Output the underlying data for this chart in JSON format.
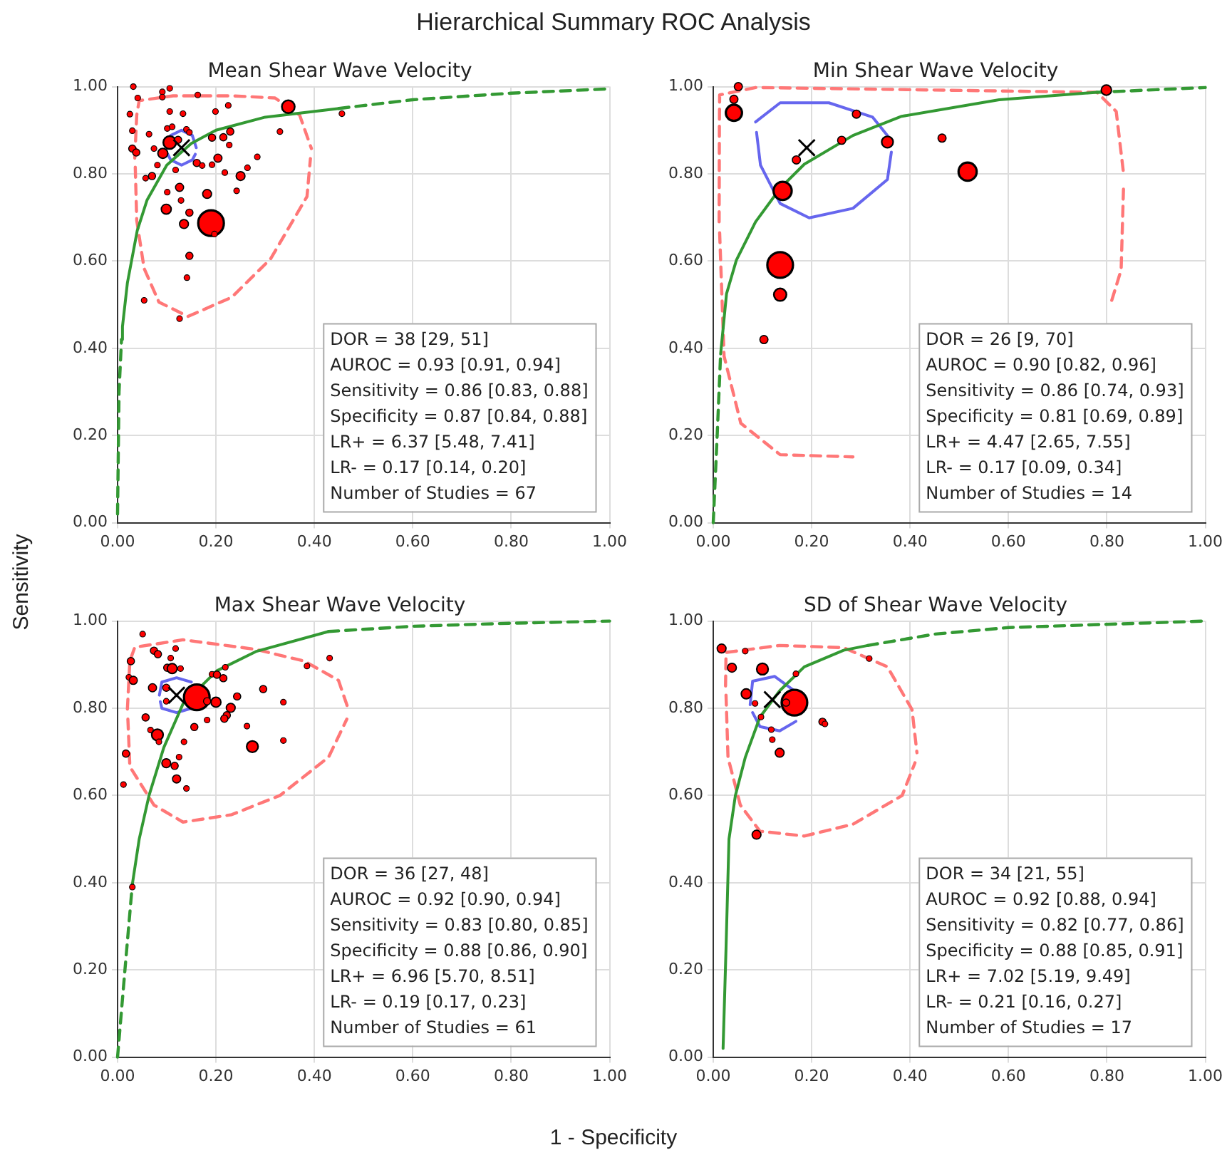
{
  "chart_data": [
    {
      "type": "scatter",
      "title": "Hierarchical Summary ROC Analysis",
      "subtitle": "Mean Shear Wave Velocity",
      "xlabel": "1 - Specificity",
      "ylabel": "Sensitivity",
      "xlim": [
        0,
        1
      ],
      "ylim": [
        0,
        1
      ],
      "xticks": [
        {
          "value": 0,
          "label": "0.00"
        },
        {
          "value": 0.2,
          "label": "0.20"
        },
        {
          "value": 0.4,
          "label": "0.40"
        },
        {
          "value": 0.6,
          "label": "0.60"
        },
        {
          "value": 0.8,
          "label": "0.80"
        },
        {
          "value": 1,
          "label": "1.00"
        }
      ],
      "yticks": [
        {
          "value": 0,
          "label": "0.00"
        },
        {
          "value": 0.2,
          "label": "0.20"
        },
        {
          "value": 0.4,
          "label": "0.40"
        },
        {
          "value": 0.6,
          "label": "0.60"
        },
        {
          "value": 0.8,
          "label": "0.80"
        },
        {
          "value": 1,
          "label": "1.00"
        }
      ],
      "grid": true,
      "annotations": [
        "DOR = 38 [29, 51]",
        "AUROC = 0.93 [0.91, 0.94]",
        "Sensitivity = 0.86 [0.83, 0.88]",
        "Specificity = 0.87 [0.84, 0.88]",
        "LR+ = 6.37 [5.48, 7.41]",
        "LR- = 0.17 [0.14, 0.20]",
        "Number of Studies = 67"
      ],
      "series": [
        {
          "type": "line",
          "color": "#ff7777",
          "line_style": "dashed",
          "marker": "none",
          "x": [
            0.035,
            0.039,
            0.044,
            0.113,
            0.232,
            0.32,
            0.37,
            0.394
          ],
          "values": [
            0.836,
            0.935,
            0.968,
            0.979,
            0.979,
            0.974,
            0.935,
            0.858
          ]
        },
        {
          "type": "line",
          "color": "#ff7777",
          "line_style": "dashed",
          "marker": "none",
          "x": [
            0.036,
            0.039,
            0.054,
            0.084,
            0.143,
            0.232,
            0.311,
            0.385,
            0.392
          ],
          "values": [
            0.815,
            0.693,
            0.583,
            0.506,
            0.473,
            0.517,
            0.605,
            0.748,
            0.835
          ]
        },
        {
          "type": "line",
          "color": "#6666ee",
          "line_style": "solid",
          "marker": "none",
          "x": [
            0.1,
            0.108,
            0.13,
            0.152,
            0.16
          ],
          "values": [
            0.86,
            0.888,
            0.9,
            0.888,
            0.86
          ]
        },
        {
          "type": "line",
          "color": "#6666ee",
          "line_style": "solid",
          "marker": "none",
          "x": [
            0.102,
            0.108,
            0.13,
            0.152,
            0.158
          ],
          "values": [
            0.845,
            0.832,
            0.82,
            0.832,
            0.845
          ]
        },
        {
          "type": "line",
          "color": "#339933",
          "line_style": "solid",
          "marker": "none",
          "x": [
            0.008,
            0.01,
            0.02,
            0.04,
            0.06,
            0.1,
            0.15,
            0.2,
            0.3,
            0.45
          ],
          "values": [
            0.42,
            0.45,
            0.55,
            0.67,
            0.74,
            0.82,
            0.87,
            0.9,
            0.93,
            0.95
          ]
        },
        {
          "type": "line",
          "color": "#339933",
          "line_style": "dashed",
          "marker": "none",
          "x": [
            0,
            0.003,
            0.008
          ],
          "values": [
            0.02,
            0.3,
            0.42
          ]
        },
        {
          "type": "line",
          "color": "#339933",
          "line_style": "dashed",
          "marker": "none",
          "x": [
            0.45,
            0.6,
            0.8,
            1
          ],
          "values": [
            0.95,
            0.97,
            0.985,
            0.995
          ]
        },
        {
          "type": "bubble",
          "color": "#ff0000",
          "marker": "circle",
          "x": [
            0.032,
            0.041,
            0.091,
            0.091,
            0.106,
            0.163,
            0.025,
            0.106,
            0.133,
            0.199,
            0.225,
            0.347,
            0.456,
            0.03,
            0.064,
            0.101,
            0.111,
            0.14,
            0.146,
            0.106,
            0.123,
            0.192,
            0.215,
            0.229,
            0.227,
            0.33,
            0.03,
            0.038,
            0.074,
            0.092,
            0.204,
            0.161,
            0.172,
            0.192,
            0.284,
            0.081,
            0.264,
            0.218,
            0.25,
            0.118,
            0.057,
            0.07,
            0.242,
            0.101,
            0.126,
            0.182,
            0.129,
            0.099,
            0.146,
            0.135,
            0.19,
            0.197,
            0.146,
            0.141,
            0.054,
            0.126
          ],
          "values": [
            1.0,
            0.974,
            0.988,
            0.976,
            0.996,
            0.981,
            0.937,
            0.943,
            0.938,
            0.943,
            0.957,
            0.954,
            0.938,
            0.899,
            0.891,
            0.904,
            0.908,
            0.902,
            0.895,
            0.872,
            0.878,
            0.883,
            0.884,
            0.897,
            0.866,
            0.897,
            0.858,
            0.849,
            0.858,
            0.847,
            0.836,
            0.825,
            0.819,
            0.821,
            0.839,
            0.82,
            0.814,
            0.803,
            0.795,
            0.809,
            0.79,
            0.795,
            0.761,
            0.758,
            0.769,
            0.754,
            0.739,
            0.719,
            0.711,
            0.685,
            0.687,
            0.662,
            0.612,
            0.562,
            0.51,
            0.468
          ],
          "sizes": [
            0.05,
            0.05,
            0.05,
            0.05,
            0.05,
            0.05,
            0.05,
            0.05,
            0.05,
            0.05,
            0.05,
            0.25,
            0.05,
            0.05,
            0.05,
            0.05,
            0.05,
            0.05,
            0.05,
            0.25,
            0.08,
            0.08,
            0.08,
            0.08,
            0.05,
            0.05,
            0.08,
            0.08,
            0.05,
            0.15,
            0.1,
            0.08,
            0.05,
            0.05,
            0.05,
            0.05,
            0.05,
            0.05,
            0.12,
            0.05,
            0.05,
            0.08,
            0.05,
            0.05,
            0.1,
            0.12,
            0.05,
            0.15,
            0.08,
            0.12,
            1,
            0.05,
            0.08,
            0.05,
            0.05,
            0.05
          ]
        },
        {
          "type": "scatter",
          "color": "#000000",
          "marker": "cross",
          "x": [
            0.13
          ],
          "values": [
            0.86
          ]
        }
      ]
    },
    {
      "type": "scatter",
      "subtitle": "Min Shear Wave Velocity",
      "xlim": [
        0,
        1
      ],
      "ylim": [
        0,
        1
      ],
      "xticks": [
        {
          "value": 0,
          "label": "0.00"
        },
        {
          "value": 0.2,
          "label": "0.20"
        },
        {
          "value": 0.4,
          "label": "0.40"
        },
        {
          "value": 0.6,
          "label": "0.60"
        },
        {
          "value": 0.8,
          "label": "0.80"
        },
        {
          "value": 1,
          "label": "1.00"
        }
      ],
      "yticks": [
        {
          "value": 0,
          "label": "0.00"
        },
        {
          "value": 0.2,
          "label": "0.20"
        },
        {
          "value": 0.4,
          "label": "0.40"
        },
        {
          "value": 0.6,
          "label": "0.60"
        },
        {
          "value": 0.8,
          "label": "0.80"
        },
        {
          "value": 1,
          "label": "1.00"
        }
      ],
      "grid": true,
      "annotations": [
        "DOR = 26 [9, 70]",
        "AUROC = 0.90 [0.82, 0.96]",
        "Sensitivity = 0.86 [0.74, 0.93]",
        "Specificity = 0.81 [0.69, 0.89]",
        "LR+ = 4.47 [2.65, 7.55]",
        "LR- = 0.17 [0.09, 0.34]",
        "Number of Studies = 14"
      ],
      "series": [
        {
          "type": "line",
          "color": "#ff7777",
          "line_style": "dashed",
          "marker": "none",
          "x": [
            0.012,
            0.0125,
            0.013,
            0.086,
            0.78,
            0.819,
            0.834
          ],
          "values": [
            0.69,
            0.91,
            0.981,
            0.998,
            0.987,
            0.943,
            0.8
          ]
        },
        {
          "type": "line",
          "color": "#ff7777",
          "line_style": "dashed",
          "marker": "none",
          "x": [
            0.013,
            0.022,
            0.056,
            0.136,
            0.284,
            0.482,
            0.68,
            0.779,
            0.81,
            0.829,
            0.834
          ],
          "values": [
            0.665,
            0.382,
            0.228,
            0.156,
            0.151,
            null,
            null,
            null,
            0.51,
            0.58,
            0.775
          ]
        },
        {
          "type": "line",
          "color": "#6666ee",
          "line_style": "solid",
          "marker": "none",
          "x": [
            0.086,
            0.136,
            0.235,
            0.324,
            0.363
          ],
          "values": [
            0.919,
            0.963,
            0.963,
            0.93,
            0.875
          ]
        },
        {
          "type": "line",
          "color": "#6666ee",
          "line_style": "solid",
          "marker": "none",
          "x": [
            0.088,
            0.096,
            0.136,
            0.195,
            0.284,
            0.354,
            0.362
          ],
          "values": [
            0.895,
            0.82,
            0.732,
            0.699,
            0.721,
            0.787,
            0.85
          ]
        },
        {
          "type": "line",
          "color": "#339933",
          "line_style": "solid",
          "marker": "none",
          "x": [
            0.015,
            0.027,
            0.047,
            0.086,
            0.136,
            0.185,
            0.284,
            0.383,
            0.581,
            0.78
          ],
          "values": [
            0.387,
            0.525,
            0.602,
            0.69,
            0.767,
            0.822,
            0.888,
            0.932,
            0.97,
            0.987
          ]
        },
        {
          "type": "line",
          "color": "#339933",
          "line_style": "dashed",
          "marker": "none",
          "x": [
            0,
            0.008,
            0.015
          ],
          "values": [
            0.0,
            0.2,
            0.387
          ]
        },
        {
          "type": "line",
          "color": "#339933",
          "line_style": "dashed",
          "marker": "none",
          "x": [
            0.78,
            0.9,
            1
          ],
          "values": [
            0.987,
            0.993,
            0.998
          ]
        },
        {
          "type": "bubble",
          "color": "#ff0000",
          "marker": "circle",
          "x": [
            0.042,
            0.042,
            0.291,
            0.261,
            0.354,
            0.465,
            0.169,
            0.517,
            0.141,
            0.136,
            0.136,
            0.103,
            0.799,
            0.051
          ],
          "values": [
            0.971,
            0.94,
            0.937,
            0.877,
            0.873,
            0.882,
            0.832,
            0.805,
            0.761,
            0.591,
            0.523,
            0.42,
            0.992,
            1.0
          ],
          "sizes": [
            0.1,
            0.4,
            0.1,
            0.1,
            0.2,
            0.1,
            0.1,
            0.5,
            0.5,
            1,
            0.24,
            0.1,
            0.16,
            0.1
          ]
        },
        {
          "type": "scatter",
          "color": "#000000",
          "marker": "cross",
          "x": [
            0.19
          ],
          "values": [
            0.86
          ]
        }
      ]
    },
    {
      "type": "scatter",
      "subtitle": "Max Shear Wave Velocity",
      "xlim": [
        0,
        1
      ],
      "ylim": [
        0,
        1
      ],
      "xticks": [
        {
          "value": 0,
          "label": "0.00"
        },
        {
          "value": 0.2,
          "label": "0.20"
        },
        {
          "value": 0.4,
          "label": "0.40"
        },
        {
          "value": 0.6,
          "label": "0.60"
        },
        {
          "value": 0.8,
          "label": "0.80"
        },
        {
          "value": 1,
          "label": "1.00"
        }
      ],
      "yticks": [
        {
          "value": 0,
          "label": "0.00"
        },
        {
          "value": 0.2,
          "label": "0.20"
        },
        {
          "value": 0.4,
          "label": "0.40"
        },
        {
          "value": 0.6,
          "label": "0.60"
        },
        {
          "value": 0.8,
          "label": "0.80"
        },
        {
          "value": 1,
          "label": "1.00"
        }
      ],
      "grid": true,
      "annotations": [
        "DOR = 36 [27, 48]",
        "AUROC = 0.92 [0.90, 0.94]",
        "Sensitivity = 0.83 [0.80, 0.85]",
        "Specificity = 0.88 [0.86, 0.90]",
        "LR+ = 6.96 [5.70, 8.51]",
        "LR- = 0.19 [0.17, 0.23]",
        "Number of Studies = 61"
      ],
      "series": [
        {
          "type": "line",
          "color": "#ff7777",
          "line_style": "dashed",
          "marker": "none",
          "x": [
            0.02,
            0.025,
            0.035,
            0.133,
            0.281,
            0.38,
            0.449,
            0.469
          ],
          "values": [
            0.798,
            0.908,
            0.94,
            0.957,
            0.935,
            0.908,
            0.864,
            0.798
          ]
        },
        {
          "type": "line",
          "color": "#ff7777",
          "line_style": "dashed",
          "marker": "none",
          "x": [
            0.021,
            0.025,
            0.074,
            0.133,
            0.232,
            0.33,
            0.429,
            0.466
          ],
          "values": [
            0.775,
            0.666,
            0.578,
            0.539,
            0.556,
            0.6,
            0.688,
            0.775
          ]
        },
        {
          "type": "line",
          "color": "#6666ee",
          "line_style": "solid",
          "marker": "none",
          "x": [
            0.085,
            0.09,
            0.12,
            0.15
          ],
          "values": [
            0.83,
            0.86,
            0.87,
            0.86
          ]
        },
        {
          "type": "line",
          "color": "#6666ee",
          "line_style": "solid",
          "marker": "none",
          "x": [
            0.087,
            0.09,
            0.12,
            0.15
          ],
          "values": [
            0.815,
            0.8,
            0.79,
            0.8
          ]
        },
        {
          "type": "line",
          "color": "#339933",
          "line_style": "solid",
          "marker": "none",
          "x": [
            0.03,
            0.044,
            0.064,
            0.094,
            0.133,
            0.202,
            0.281,
            0.429
          ],
          "values": [
            0.396,
            0.5,
            0.6,
            0.71,
            0.81,
            0.886,
            0.93,
            0.976
          ]
        },
        {
          "type": "line",
          "color": "#339933",
          "line_style": "dashed",
          "marker": "none",
          "x": [
            0,
            0.015,
            0.03
          ],
          "values": [
            0.0,
            0.2,
            0.396
          ]
        },
        {
          "type": "line",
          "color": "#339933",
          "line_style": "dashed",
          "marker": "none",
          "x": [
            0.429,
            0.6,
            0.8,
            1
          ],
          "values": [
            0.976,
            0.988,
            0.995,
            1.0
          ]
        },
        {
          "type": "bubble",
          "color": "#ff0000",
          "marker": "circle",
          "x": [
            0.051,
            0.074,
            0.082,
            0.118,
            0.027,
            0.108,
            0.101,
            0.111,
            0.128,
            0.219,
            0.192,
            0.202,
            0.215,
            0.023,
            0.032,
            0.071,
            0.099,
            0.296,
            0.385,
            0.431,
            0.161,
            0.182,
            0.2,
            0.243,
            0.337,
            0.099,
            0.23,
            0.222,
            0.217,
            0.057,
            0.182,
            0.156,
            0.263,
            0.067,
            0.081,
            0.084,
            0.135,
            0.274,
            0.337,
            0.017,
            0.099,
            0.116,
            0.125,
            0.12,
            0.14,
            0.012,
            0.03
          ],
          "values": [
            0.97,
            0.932,
            0.924,
            0.937,
            0.908,
            0.915,
            0.893,
            0.891,
            0.891,
            0.894,
            0.878,
            0.877,
            0.869,
            0.871,
            0.864,
            0.847,
            0.847,
            0.844,
            0.897,
            0.915,
            0.825,
            0.816,
            0.814,
            0.827,
            0.814,
            0.816,
            0.801,
            0.784,
            0.776,
            0.779,
            0.773,
            0.757,
            0.759,
            0.75,
            0.739,
            0.723,
            0.723,
            0.712,
            0.726,
            0.696,
            0.674,
            0.668,
            0.688,
            0.638,
            0.616,
            0.625,
            0.39
          ],
          "sizes": [
            0.05,
            0.08,
            0.08,
            0.05,
            0.08,
            0.05,
            0.08,
            0.15,
            0.05,
            0.05,
            0.05,
            0.08,
            0.08,
            0.05,
            0.1,
            0.1,
            0.08,
            0.08,
            0.05,
            0.05,
            1,
            0.08,
            0.15,
            0.08,
            0.05,
            0.05,
            0.12,
            0.08,
            0.08,
            0.08,
            0.05,
            0.08,
            0.05,
            0.05,
            0.2,
            0.05,
            0.05,
            0.2,
            0.05,
            0.08,
            0.12,
            0.08,
            0.05,
            0.1,
            0.05,
            0.05,
            0.05
          ]
        },
        {
          "type": "scatter",
          "color": "#000000",
          "marker": "cross",
          "x": [
            0.12
          ],
          "values": [
            0.83
          ]
        }
      ]
    },
    {
      "type": "scatter",
      "subtitle": "SD of Shear Wave Velocity",
      "xlim": [
        0,
        1
      ],
      "ylim": [
        0,
        1
      ],
      "xticks": [
        {
          "value": 0,
          "label": "0.00"
        },
        {
          "value": 0.2,
          "label": "0.20"
        },
        {
          "value": 0.4,
          "label": "0.40"
        },
        {
          "value": 0.6,
          "label": "0.60"
        },
        {
          "value": 0.8,
          "label": "0.80"
        },
        {
          "value": 1,
          "label": "1.00"
        }
      ],
      "yticks": [
        {
          "value": 0,
          "label": "0.00"
        },
        {
          "value": 0.2,
          "label": "0.20"
        },
        {
          "value": 0.4,
          "label": "0.40"
        },
        {
          "value": 0.6,
          "label": "0.60"
        },
        {
          "value": 0.8,
          "label": "0.80"
        },
        {
          "value": 1,
          "label": "1.00"
        }
      ],
      "grid": true,
      "annotations": [
        "DOR = 34 [21, 55]",
        "AUROC = 0.92 [0.88, 0.94]",
        "Sensitivity = 0.82 [0.77, 0.86]",
        "Specificity = 0.88 [0.85, 0.91]",
        "LR+ = 7.02 [5.19, 9.49]",
        "LR- = 0.21 [0.16, 0.27]",
        "Number of Studies = 17"
      ],
      "series": [
        {
          "type": "line",
          "color": "#ff7777",
          "line_style": "dashed",
          "marker": "none",
          "x": [
            0.025,
            0.026,
            0.135,
            0.265,
            0.354,
            0.404,
            0.414
          ],
          "values": [
            0.851,
            0.928,
            0.944,
            0.939,
            0.895,
            0.797,
            0.698
          ]
        },
        {
          "type": "line",
          "color": "#ff7777",
          "line_style": "dashed",
          "marker": "none",
          "x": [
            0.026,
            0.03,
            0.055,
            0.095,
            0.185,
            0.284,
            0.384,
            0.41
          ],
          "values": [
            0.83,
            0.687,
            0.578,
            0.518,
            0.507,
            0.534,
            0.6,
            0.675
          ]
        },
        {
          "type": "line",
          "color": "#6666ee",
          "line_style": "solid",
          "marker": "none",
          "x": [
            0.075,
            0.08,
            0.125,
            0.165,
            0.17
          ],
          "values": [
            0.808,
            0.862,
            0.873,
            0.84,
            0.786
          ]
        },
        {
          "type": "line",
          "color": "#6666ee",
          "line_style": "solid",
          "marker": "none",
          "x": [
            0.08,
            0.095,
            0.135,
            0.168
          ],
          "values": [
            0.79,
            0.758,
            0.748,
            0.77
          ]
        },
        {
          "type": "line",
          "color": "#339933",
          "line_style": "solid",
          "marker": "none",
          "x": [
            0.02,
            0.026,
            0.032,
            0.045,
            0.065,
            0.095,
            0.135,
            0.185,
            0.265,
            0.314
          ],
          "values": [
            0.02,
            0.25,
            0.5,
            0.6,
            0.687,
            0.78,
            0.84,
            0.895,
            0.933,
            0.944
          ]
        },
        {
          "type": "line",
          "color": "#339933",
          "line_style": "dashed",
          "marker": "none",
          "x": [
            0.314,
            0.45,
            0.6,
            1
          ],
          "values": [
            0.944,
            0.97,
            0.985,
            1.0
          ]
        },
        {
          "type": "bubble",
          "color": "#ff0000",
          "marker": "circle",
          "x": [
            0.017,
            0.065,
            0.038,
            0.1,
            0.168,
            0.317,
            0.067,
            0.085,
            0.165,
            0.148,
            0.097,
            0.118,
            0.222,
            0.227,
            0.12,
            0.135,
            0.088
          ],
          "values": [
            0.937,
            0.931,
            0.893,
            0.89,
            0.879,
            0.914,
            0.833,
            0.811,
            0.813,
            0.813,
            0.78,
            0.751,
            0.769,
            0.764,
            0.728,
            0.698,
            0.51
          ],
          "sizes": [
            0.12,
            0.05,
            0.12,
            0.2,
            0.05,
            0.05,
            0.15,
            0.05,
            1,
            0.08,
            0.05,
            0.05,
            0.08,
            0.05,
            0.05,
            0.12,
            0.12
          ]
        },
        {
          "type": "scatter",
          "color": "#000000",
          "marker": "cross",
          "x": [
            0.12
          ],
          "values": [
            0.82
          ]
        }
      ]
    }
  ]
}
